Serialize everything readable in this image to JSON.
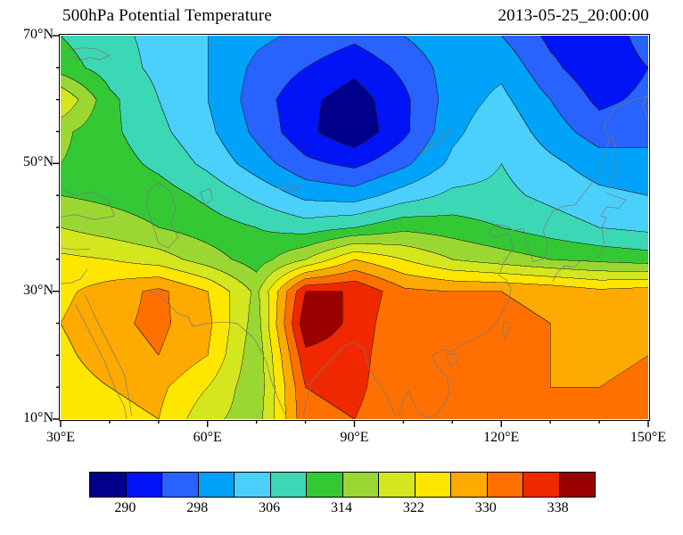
{
  "header": {
    "title": "500hPa Potential Temperature",
    "timestamp": "2013-05-25_20:00:00"
  },
  "axes": {
    "x": {
      "range": [
        30,
        150
      ],
      "major": [
        {
          "value": 30,
          "label": "30°E"
        },
        {
          "value": 60,
          "label": "60°E"
        },
        {
          "value": 90,
          "label": "90°E"
        },
        {
          "value": 120,
          "label": "120°E"
        },
        {
          "value": 150,
          "label": "150°E"
        }
      ],
      "minor": [
        40,
        50,
        70,
        80,
        100,
        110,
        130,
        140
      ]
    },
    "y": {
      "range": [
        10,
        70
      ],
      "major": [
        {
          "value": 70,
          "label": "70°N"
        },
        {
          "value": 50,
          "label": "50°N"
        },
        {
          "value": 30,
          "label": "30°N"
        },
        {
          "value": 10,
          "label": "10°N"
        }
      ],
      "minor": [
        65,
        60,
        55,
        45,
        40,
        35,
        25,
        20,
        15
      ]
    }
  },
  "chart_data": {
    "type": "heatmap",
    "subtype": "filled_contour_map",
    "title": "500hPa Potential Temperature",
    "timestamp": "2013-05-25_20:00:00",
    "xlabel": "",
    "ylabel": "",
    "x_units": "degrees_east",
    "y_units": "degrees_north",
    "xlim": [
      30,
      150
    ],
    "ylim": [
      10,
      70
    ],
    "levels": [
      290,
      294,
      298,
      302,
      306,
      310,
      314,
      318,
      322,
      326,
      330,
      334,
      338
    ],
    "level_step": 4,
    "colors": [
      "#00008b",
      "#0014f5",
      "#2862ff",
      "#00a2fa",
      "#4ad0fa",
      "#3cd7b4",
      "#34c834",
      "#9bd732",
      "#d4e61e",
      "#ffe600",
      "#ffaa00",
      "#ff7000",
      "#f02800",
      "#9b0000"
    ],
    "colorbar_labels": [
      "290",
      "298",
      "306",
      "314",
      "322",
      "330",
      "338"
    ],
    "colorbar_label_values": [
      290,
      298,
      306,
      314,
      322,
      330,
      338
    ],
    "grid": {
      "lons": [
        30,
        40,
        50,
        60,
        70,
        80,
        90,
        100,
        110,
        120,
        130,
        140,
        150
      ],
      "lats": [
        70,
        65,
        60,
        55,
        50,
        45,
        40,
        35,
        30,
        25,
        20,
        15,
        10
      ],
      "values": [
        [
          310,
          307,
          305,
          302,
          299,
          297,
          295,
          298,
          301,
          298,
          293,
          291,
          296
        ],
        [
          312,
          308,
          305,
          302,
          297,
          294,
          291,
          295,
          300,
          301,
          295,
          291,
          294
        ],
        [
          322,
          311,
          306,
          302,
          296,
          291,
          288,
          293,
          300,
          303,
          298,
          293,
          295
        ],
        [
          315,
          311,
          307,
          303,
          297,
          291,
          287,
          293,
          301,
          305,
          300,
          296,
          297
        ],
        [
          314,
          312,
          309,
          305,
          300,
          295,
          293,
          297,
          303,
          306,
          303,
          300,
          299
        ],
        [
          314,
          313,
          312,
          309,
          305,
          301,
          300,
          304,
          307,
          307,
          305,
          303,
          302
        ],
        [
          318,
          316,
          314,
          312,
          310,
          308,
          310,
          313,
          312,
          310,
          308,
          306,
          305
        ],
        [
          323,
          322,
          320,
          316,
          312,
          318,
          326,
          322,
          318,
          316,
          314,
          313,
          312
        ],
        [
          325,
          328,
          331,
          326,
          317,
          338,
          338,
          331,
          330,
          330,
          329,
          327,
          328
        ],
        [
          326,
          329,
          331,
          327,
          316,
          341,
          337,
          330,
          332,
          331,
          330,
          328,
          329
        ],
        [
          325,
          328,
          330,
          326,
          315,
          337,
          336,
          330,
          333,
          331,
          330,
          329,
          330
        ],
        [
          324,
          326,
          327,
          322,
          315,
          334,
          335,
          331,
          333,
          332,
          330,
          330,
          331
        ],
        [
          323,
          325,
          326,
          319,
          316,
          333,
          334,
          331,
          333,
          332,
          331,
          331,
          332
        ]
      ]
    }
  },
  "coastlines": [
    [
      [
        33,
        28
      ],
      [
        35,
        25
      ],
      [
        37,
        22
      ],
      [
        39,
        19
      ],
      [
        41,
        15
      ],
      [
        43,
        12
      ],
      [
        43.5,
        10
      ]
    ],
    [
      [
        35,
        29.5
      ],
      [
        37,
        26
      ],
      [
        39,
        23
      ],
      [
        41,
        20
      ],
      [
        43,
        17
      ],
      [
        44,
        13
      ],
      [
        44.5,
        10.5
      ]
    ],
    [
      [
        30,
        36.8
      ],
      [
        33,
        36.5
      ],
      [
        36,
        36.6
      ]
    ],
    [
      [
        30,
        31.2
      ],
      [
        32,
        31.3
      ],
      [
        34,
        31.9
      ],
      [
        35.5,
        33.5
      ]
    ],
    [
      [
        48,
        30
      ],
      [
        50,
        29.5
      ],
      [
        52,
        28
      ],
      [
        54,
        26.5
      ],
      [
        56,
        26
      ],
      [
        57,
        24.5
      ],
      [
        60,
        25
      ],
      [
        63,
        25.2
      ],
      [
        66,
        25
      ],
      [
        69,
        23
      ],
      [
        70,
        22
      ]
    ],
    [
      [
        50,
        47
      ],
      [
        52.5,
        45.5
      ],
      [
        53.5,
        43
      ],
      [
        52.5,
        40.5
      ],
      [
        54,
        38.5
      ],
      [
        52,
        36.8
      ],
      [
        50,
        37.5
      ],
      [
        49,
        40
      ],
      [
        47.5,
        43.5
      ],
      [
        48,
        45.8
      ],
      [
        50,
        47
      ]
    ],
    [
      [
        58.5,
        45.5
      ],
      [
        60.5,
        46
      ],
      [
        61,
        44.5
      ],
      [
        59.5,
        43.5
      ],
      [
        58.5,
        45.5
      ]
    ],
    [
      [
        30,
        46
      ],
      [
        33,
        45
      ],
      [
        36.5,
        45.5
      ],
      [
        39.5,
        44.5
      ],
      [
        41,
        41.8
      ],
      [
        37,
        41.2
      ],
      [
        33,
        42
      ],
      [
        30,
        41.6
      ]
    ],
    [
      [
        70,
        22
      ],
      [
        72,
        19
      ],
      [
        73,
        16
      ],
      [
        74.5,
        13
      ],
      [
        76,
        10.5
      ]
    ],
    [
      [
        79.5,
        10.5
      ],
      [
        80.3,
        13
      ],
      [
        81,
        15.5
      ],
      [
        83,
        17.5
      ],
      [
        86,
        20
      ],
      [
        88,
        21.5
      ],
      [
        90,
        22
      ],
      [
        92,
        21
      ],
      [
        93,
        18
      ],
      [
        94.5,
        16
      ],
      [
        96,
        14.5
      ],
      [
        97.5,
        12
      ],
      [
        98.5,
        10.5
      ]
    ],
    [
      [
        99,
        10.5
      ],
      [
        100,
        13
      ],
      [
        101,
        14.5
      ],
      [
        103,
        11
      ],
      [
        105,
        10.3
      ],
      [
        106.5,
        10.5
      ],
      [
        108,
        12
      ],
      [
        109.3,
        14
      ],
      [
        109,
        16.5
      ],
      [
        106.5,
        18.5
      ],
      [
        106,
        20
      ],
      [
        108,
        20.8
      ],
      [
        110,
        20.5
      ],
      [
        112,
        21.8
      ],
      [
        114.5,
        22.5
      ],
      [
        117,
        23.5
      ],
      [
        119,
        25
      ],
      [
        120,
        26.5
      ],
      [
        121.5,
        28.5
      ],
      [
        122,
        30.5
      ],
      [
        121,
        31.8
      ],
      [
        119.5,
        32.5
      ],
      [
        120.5,
        34.5
      ],
      [
        122.5,
        36.8
      ],
      [
        121.5,
        39
      ],
      [
        118.5,
        38.5
      ],
      [
        117.5,
        39.3
      ],
      [
        119,
        40.5
      ],
      [
        121,
        40.2
      ],
      [
        122.5,
        39.5
      ],
      [
        124.5,
        39.8
      ]
    ],
    [
      [
        124.5,
        39.8
      ],
      [
        125,
        38
      ],
      [
        126,
        36
      ],
      [
        126.5,
        34.6
      ],
      [
        129,
        35.2
      ],
      [
        129.5,
        37.5
      ],
      [
        128.5,
        39.5
      ],
      [
        130.5,
        42.5
      ],
      [
        132.5,
        43.3
      ],
      [
        135,
        43.5
      ],
      [
        137,
        45.5
      ],
      [
        138.5,
        47
      ],
      [
        140,
        48.5
      ],
      [
        141,
        51
      ],
      [
        142,
        53.5
      ],
      [
        141,
        56
      ],
      [
        143,
        58.5
      ],
      [
        147,
        60
      ],
      [
        150,
        60.5
      ]
    ],
    [
      [
        142,
        46
      ],
      [
        143,
        49
      ],
      [
        143.5,
        52
      ],
      [
        142.5,
        54.5
      ]
    ],
    [
      [
        130.5,
        31.5
      ],
      [
        131.5,
        33
      ],
      [
        133,
        34
      ],
      [
        135,
        33.8
      ],
      [
        136.5,
        35
      ],
      [
        138.5,
        34.8
      ],
      [
        140,
        35.5
      ],
      [
        141,
        37.5
      ],
      [
        140.5,
        40
      ],
      [
        141.5,
        41.5
      ],
      [
        140.3,
        41.8
      ],
      [
        141.5,
        43.2
      ],
      [
        144,
        43
      ],
      [
        145.5,
        44.3
      ],
      [
        143.5,
        44.8
      ],
      [
        141.5,
        45.4
      ]
    ],
    [
      [
        120.5,
        25.2
      ],
      [
        121.8,
        24.9
      ],
      [
        120.8,
        22.5
      ],
      [
        120.2,
        23.5
      ],
      [
        120.5,
        25.2
      ]
    ],
    [
      [
        108.8,
        20
      ],
      [
        110.5,
        20.2
      ],
      [
        111,
        19
      ],
      [
        109.5,
        18.3
      ],
      [
        108.8,
        20
      ]
    ],
    [
      [
        103.8,
        51.5
      ],
      [
        106,
        52.5
      ],
      [
        108,
        53.5
      ],
      [
        109.8,
        55.2
      ],
      [
        108.5,
        54.9
      ],
      [
        106.5,
        53.6
      ],
      [
        104.4,
        52.4
      ],
      [
        103.8,
        51.5
      ]
    ],
    [
      [
        74,
        46.2
      ],
      [
        76.5,
        46.7
      ],
      [
        78.8,
        46.3
      ],
      [
        76.5,
        45.6
      ],
      [
        74,
        46.2
      ]
    ],
    [
      [
        32,
        66.8
      ],
      [
        34,
        66.2
      ],
      [
        36,
        66.6
      ],
      [
        38,
        66.2
      ],
      [
        40,
        66.9
      ],
      [
        37.5,
        67.9
      ],
      [
        34.5,
        68.1
      ],
      [
        32,
        67.8
      ]
    ],
    [
      [
        150,
        61
      ],
      [
        148.8,
        59
      ],
      [
        150,
        57
      ]
    ]
  ]
}
